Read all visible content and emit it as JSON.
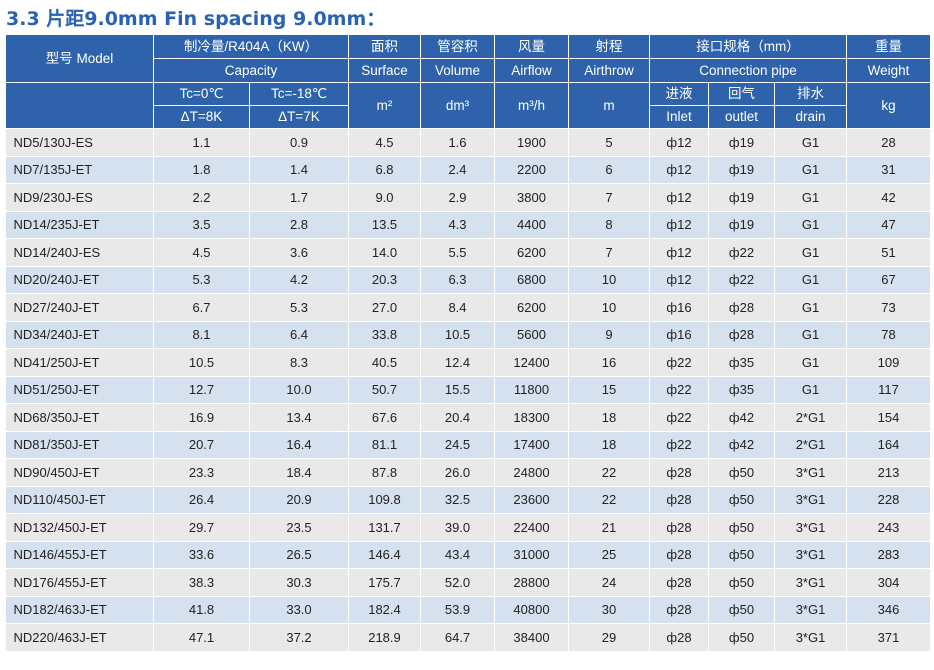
{
  "title": "3.3 片距9.0mm Fin spacing 9.0mm：",
  "header": {
    "model": "型号 Model",
    "capacity_cn": "制冷量/R404A（KW）",
    "capacity_en": "Capacity",
    "tc1_a": "Tc=0℃",
    "tc1_b": "ΔT=8K",
    "tc2_a": "Tc=-18℃",
    "tc2_b": "ΔT=7K",
    "surface_cn": "面积",
    "surface_en": "Surface",
    "surface_unit": "m²",
    "volume_cn": "管容积",
    "volume_en": "Volume",
    "volume_unit": "dm³",
    "airflow_cn": "风量",
    "airflow_en": "Airflow",
    "airflow_unit": "m³/h",
    "throw_cn": "射程",
    "throw_en": "Airthrow",
    "throw_unit": "m",
    "conn_cn": "接口规格（mm）",
    "conn_en": "Connection pipe",
    "inlet_cn": "进液",
    "inlet_en": "Inlet",
    "outlet_cn": "回气",
    "outlet_en": "outlet",
    "drain_cn": "排水",
    "drain_en": "drain",
    "weight_cn": "重量",
    "weight_en": "Weight",
    "weight_unit": "kg"
  },
  "rows": [
    [
      "ND5/130J-ES",
      "1.1",
      "0.9",
      "4.5",
      "1.6",
      "1900",
      "5",
      "ф12",
      "ф19",
      "G1",
      "28"
    ],
    [
      "ND7/135J-ET",
      "1.8",
      "1.4",
      "6.8",
      "2.4",
      "2200",
      "6",
      "ф12",
      "ф19",
      "G1",
      "31"
    ],
    [
      "ND9/230J-ES",
      "2.2",
      "1.7",
      "9.0",
      "2.9",
      "3800",
      "7",
      "ф12",
      "ф19",
      "G1",
      "42"
    ],
    [
      "ND14/235J-ET",
      "3.5",
      "2.8",
      "13.5",
      "4.3",
      "4400",
      "8",
      "ф12",
      "ф19",
      "G1",
      "47"
    ],
    [
      "ND14/240J-ES",
      "4.5",
      "3.6",
      "14.0",
      "5.5",
      "6200",
      "7",
      "ф12",
      "ф22",
      "G1",
      "51"
    ],
    [
      "ND20/240J-ET",
      "5.3",
      "4.2",
      "20.3",
      "6.3",
      "6800",
      "10",
      "ф12",
      "ф22",
      "G1",
      "67"
    ],
    [
      "ND27/240J-ET",
      "6.7",
      "5.3",
      "27.0",
      "8.4",
      "6200",
      "10",
      "ф16",
      "ф28",
      "G1",
      "73"
    ],
    [
      "ND34/240J-ET",
      "8.1",
      "6.4",
      "33.8",
      "10.5",
      "5600",
      "9",
      "ф16",
      "ф28",
      "G1",
      "78"
    ],
    [
      "ND41/250J-ET",
      "10.5",
      "8.3",
      "40.5",
      "12.4",
      "12400",
      "16",
      "ф22",
      "ф35",
      "G1",
      "109"
    ],
    [
      "ND51/250J-ET",
      "12.7",
      "10.0",
      "50.7",
      "15.5",
      "11800",
      "15",
      "ф22",
      "ф35",
      "G1",
      "117"
    ],
    [
      "ND68/350J-ET",
      "16.9",
      "13.4",
      "67.6",
      "20.4",
      "18300",
      "18",
      "ф22",
      "ф42",
      "2*G1",
      "154"
    ],
    [
      "ND81/350J-ET",
      "20.7",
      "16.4",
      "81.1",
      "24.5",
      "17400",
      "18",
      "ф22",
      "ф42",
      "2*G1",
      "164"
    ],
    [
      "ND90/450J-ET",
      "23.3",
      "18.4",
      "87.8",
      "26.0",
      "24800",
      "22",
      "ф28",
      "ф50",
      "3*G1",
      "213"
    ],
    [
      "ND110/450J-ET",
      "26.4",
      "20.9",
      "109.8",
      "32.5",
      "23600",
      "22",
      "ф28",
      "ф50",
      "3*G1",
      "228"
    ],
    [
      "ND132/450J-ET",
      "29.7",
      "23.5",
      "131.7",
      "39.0",
      "22400",
      "21",
      "ф28",
      "ф50",
      "3*G1",
      "243"
    ],
    [
      "ND146/455J-ET",
      "33.6",
      "26.5",
      "146.4",
      "43.4",
      "31000",
      "25",
      "ф28",
      "ф50",
      "3*G1",
      "283"
    ],
    [
      "ND176/455J-ET",
      "38.3",
      "30.3",
      "175.7",
      "52.0",
      "28800",
      "24",
      "ф28",
      "ф50",
      "3*G1",
      "304"
    ],
    [
      "ND182/463J-ET",
      "41.8",
      "33.0",
      "182.4",
      "53.9",
      "40800",
      "30",
      "ф28",
      "ф50",
      "3*G1",
      "346"
    ],
    [
      "ND220/463J-ET",
      "47.1",
      "37.2",
      "218.9",
      "64.7",
      "38400",
      "29",
      "ф28",
      "ф50",
      "3*G1",
      "371"
    ]
  ]
}
